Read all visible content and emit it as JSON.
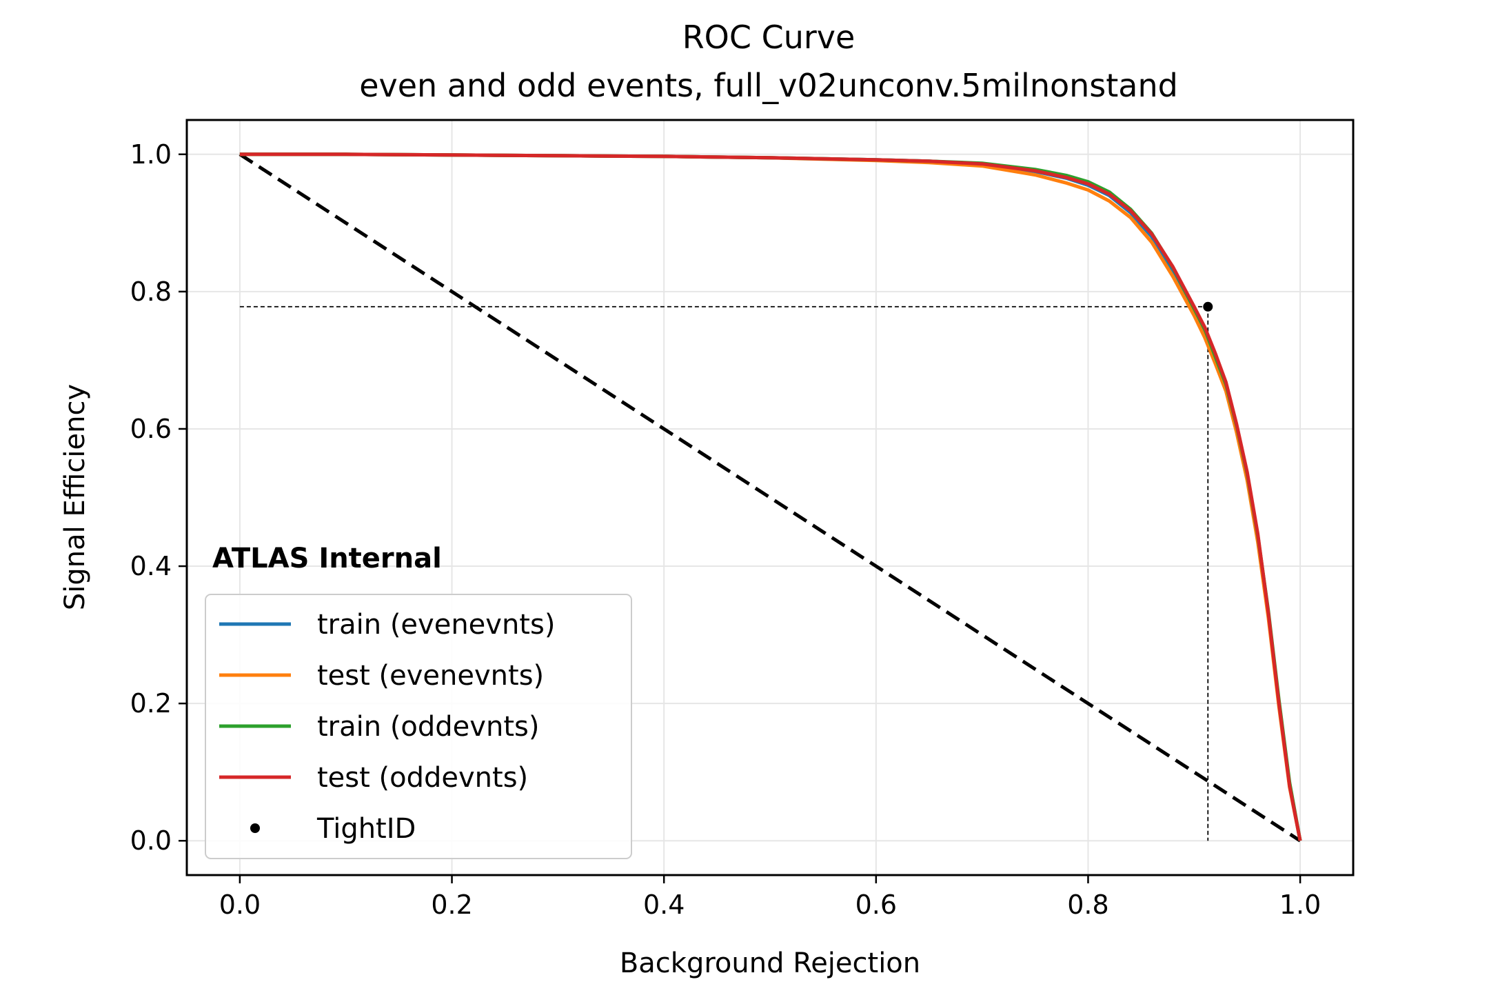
{
  "chart_data": {
    "type": "line",
    "title": "ROC Curve",
    "subtitle": "even and odd events, full_v02unconv.5milnonstand",
    "xlabel": "Background Rejection",
    "ylabel": "Signal Efficiency",
    "xlim": [
      -0.05,
      1.05
    ],
    "ylim": [
      -0.05,
      1.05
    ],
    "xticks": [
      0.0,
      0.2,
      0.4,
      0.6,
      0.8,
      1.0
    ],
    "yticks": [
      0.0,
      0.2,
      0.4,
      0.6,
      0.8,
      1.0
    ],
    "xtick_labels": [
      "0.0",
      "0.2",
      "0.4",
      "0.6",
      "0.8",
      "1.0"
    ],
    "ytick_labels": [
      "0.0",
      "0.2",
      "0.4",
      "0.6",
      "0.8",
      "1.0"
    ],
    "grid": true,
    "legend_position": "lower-left",
    "annotation": "ATLAS Internal",
    "series": [
      {
        "name": "train (evenevnts)",
        "color": "#1f77b4",
        "x": [
          0.0,
          0.1,
          0.2,
          0.3,
          0.4,
          0.5,
          0.6,
          0.65,
          0.7,
          0.75,
          0.78,
          0.8,
          0.82,
          0.84,
          0.86,
          0.88,
          0.9,
          0.91,
          0.92,
          0.93,
          0.94,
          0.95,
          0.96,
          0.97,
          0.98,
          0.99,
          1.0
        ],
        "y": [
          1.0,
          1.0,
          0.999,
          0.998,
          0.997,
          0.995,
          0.992,
          0.99,
          0.986,
          0.975,
          0.965,
          0.955,
          0.94,
          0.915,
          0.88,
          0.83,
          0.77,
          0.74,
          0.7,
          0.66,
          0.6,
          0.53,
          0.44,
          0.33,
          0.2,
          0.08,
          0.0
        ]
      },
      {
        "name": "test (evenevnts)",
        "color": "#ff7f0e",
        "x": [
          0.0,
          0.1,
          0.2,
          0.3,
          0.4,
          0.5,
          0.6,
          0.65,
          0.7,
          0.75,
          0.78,
          0.8,
          0.82,
          0.84,
          0.86,
          0.88,
          0.9,
          0.91,
          0.92,
          0.93,
          0.94,
          0.95,
          0.96,
          0.97,
          0.98,
          0.99,
          1.0
        ],
        "y": [
          1.0,
          1.0,
          0.999,
          0.998,
          0.997,
          0.995,
          0.991,
          0.988,
          0.983,
          0.97,
          0.958,
          0.948,
          0.932,
          0.908,
          0.872,
          0.822,
          0.765,
          0.733,
          0.695,
          0.655,
          0.595,
          0.525,
          0.435,
          0.325,
          0.195,
          0.078,
          0.0
        ]
      },
      {
        "name": "train (oddevnts)",
        "color": "#2ca02c",
        "x": [
          0.0,
          0.1,
          0.2,
          0.3,
          0.4,
          0.5,
          0.6,
          0.65,
          0.7,
          0.75,
          0.78,
          0.8,
          0.82,
          0.84,
          0.86,
          0.88,
          0.9,
          0.91,
          0.92,
          0.93,
          0.94,
          0.95,
          0.96,
          0.97,
          0.98,
          0.99,
          1.0
        ],
        "y": [
          1.0,
          1.0,
          0.999,
          0.998,
          0.997,
          0.995,
          0.992,
          0.99,
          0.987,
          0.978,
          0.969,
          0.96,
          0.945,
          0.92,
          0.885,
          0.835,
          0.775,
          0.745,
          0.705,
          0.665,
          0.605,
          0.535,
          0.445,
          0.335,
          0.205,
          0.085,
          0.0
        ]
      },
      {
        "name": "test (oddevnts)",
        "color": "#d62728",
        "x": [
          0.0,
          0.1,
          0.2,
          0.3,
          0.4,
          0.5,
          0.6,
          0.65,
          0.7,
          0.75,
          0.78,
          0.8,
          0.82,
          0.84,
          0.86,
          0.88,
          0.9,
          0.91,
          0.92,
          0.93,
          0.94,
          0.95,
          0.96,
          0.97,
          0.98,
          0.99,
          1.0
        ],
        "y": [
          1.0,
          1.0,
          0.999,
          0.998,
          0.997,
          0.995,
          0.992,
          0.99,
          0.986,
          0.976,
          0.966,
          0.957,
          0.942,
          0.918,
          0.884,
          0.836,
          0.778,
          0.748,
          0.71,
          0.668,
          0.607,
          0.537,
          0.447,
          0.332,
          0.2,
          0.08,
          0.0
        ]
      }
    ],
    "reference_line": {
      "x": [
        0.0,
        1.0
      ],
      "y": [
        1.0,
        0.0
      ],
      "color": "#000000",
      "style": "dashed"
    },
    "marker": {
      "name": "TightID",
      "x": 0.913,
      "y": 0.778,
      "color": "#000000"
    }
  }
}
